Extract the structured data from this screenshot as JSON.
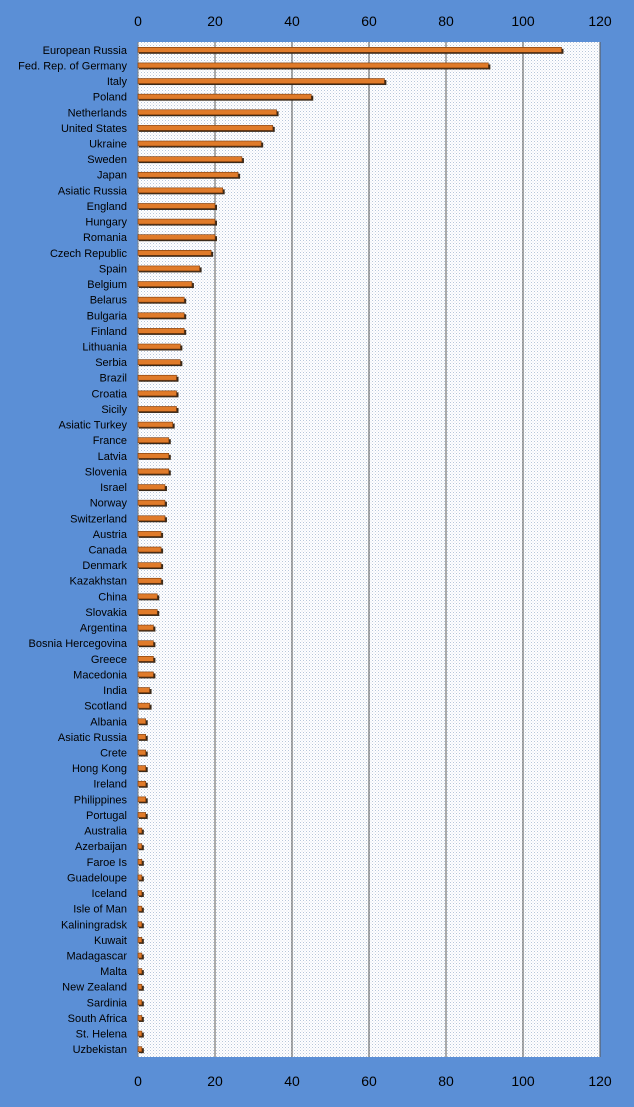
{
  "chart_data": {
    "type": "bar",
    "orientation": "horizontal",
    "categories": [
      "European Russia",
      "Fed. Rep. of Germany",
      "Italy",
      "Poland",
      "Netherlands",
      "United States",
      "Ukraine",
      "Sweden",
      "Japan",
      "Asiatic Russia",
      "England",
      "Hungary",
      "Romania",
      "Czech Republic",
      "Spain",
      "Belgium",
      "Belarus",
      "Bulgaria",
      "Finland",
      "Lithuania",
      "Serbia",
      "Brazil",
      "Croatia",
      "Sicily",
      "Asiatic Turkey",
      "France",
      "Latvia",
      "Slovenia",
      "Israel",
      "Norway",
      "Switzerland",
      "Austria",
      "Canada",
      "Denmark",
      "Kazakhstan",
      "China",
      "Slovakia",
      "Argentina",
      "Bosnia Hercegovina",
      "Greece",
      "Macedonia",
      "India",
      "Scotland",
      "Albania",
      "Asiatic Russia",
      "Crete",
      "Hong Kong",
      "Ireland",
      "Philippines",
      "Portugal",
      "Australia",
      "Azerbaijan",
      "Faroe Is",
      "Guadeloupe",
      "Iceland",
      "Isle of Man",
      "Kaliningradsk",
      "Kuwait",
      "Madagascar",
      "Malta",
      "New Zealand",
      "Sardinia",
      "South Africa",
      "St. Helena",
      "Uzbekistan"
    ],
    "values": [
      110,
      91,
      64,
      45,
      36,
      35,
      32,
      27,
      26,
      22,
      20,
      20,
      20,
      19,
      16,
      14,
      12,
      12,
      12,
      11,
      11,
      10,
      10,
      10,
      9,
      8,
      8,
      8,
      7,
      7,
      7,
      6,
      6,
      6,
      6,
      5,
      5,
      4,
      4,
      4,
      4,
      3,
      3,
      2,
      2,
      2,
      2,
      2,
      2,
      2,
      1,
      1,
      1,
      1,
      1,
      1,
      1,
      1,
      1,
      1,
      1,
      1,
      1,
      1,
      1
    ],
    "xlim": [
      0,
      120
    ],
    "xticks": [
      0,
      20,
      40,
      60,
      80,
      100,
      120
    ],
    "tick_labels_top": true,
    "tick_labels_bottom": true,
    "grid": "vertical",
    "colors": {
      "background": "#5b8fd6",
      "plot_area": "#ffffff",
      "plot_pattern": "#c9d6e6",
      "gridline": "#555555",
      "bar_fill": "#e07b2a",
      "bar_outline": "#7a3a0a",
      "bar_shadow": "#3a2a1a",
      "label_text": "#000000",
      "tick_text": "#000000"
    },
    "title": "",
    "xlabel": "",
    "ylabel": ""
  }
}
